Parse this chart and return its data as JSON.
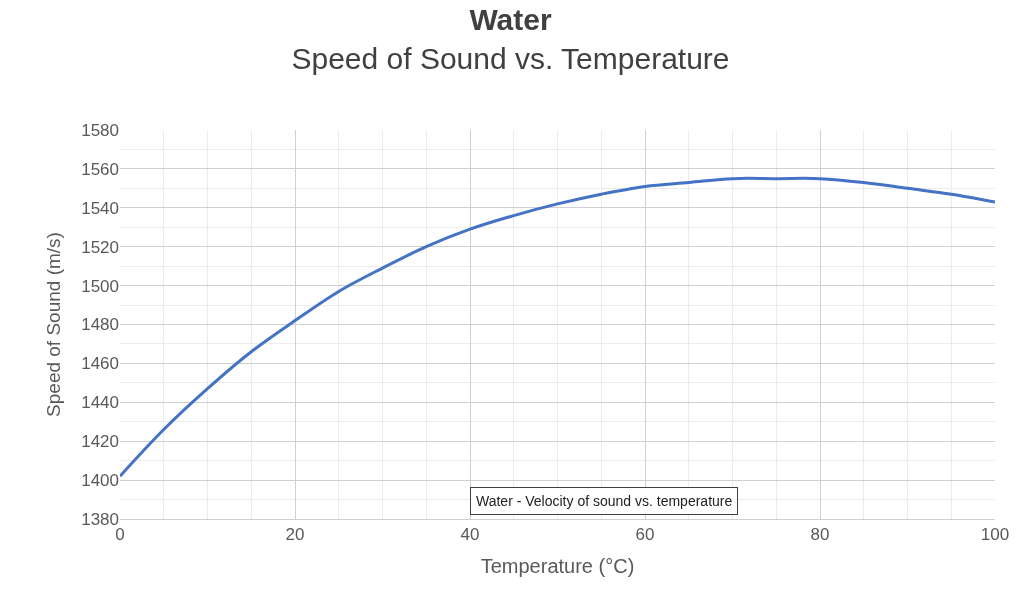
{
  "chart_data": {
    "type": "line",
    "title": "Water",
    "subtitle": "Speed of Sound vs. Temperature",
    "xlabel": "Temperature (°C)",
    "ylabel": "Speed of Sound (m/s)",
    "x": [
      0,
      5,
      10,
      15,
      20,
      25,
      30,
      35,
      40,
      45,
      50,
      55,
      60,
      65,
      70,
      75,
      80,
      85,
      90,
      95,
      100
    ],
    "series": [
      {
        "color": "#4472c4",
        "values": [
          1402,
          1426,
          1447,
          1466,
          1482,
          1497,
          1509,
          1520,
          1529,
          1536,
          1542,
          1547,
          1551,
          1553,
          1555,
          1555,
          1555,
          1553,
          1550,
          1547,
          1543
        ]
      }
    ],
    "xlim": [
      0,
      100
    ],
    "xticks": [
      0,
      20,
      40,
      60,
      80,
      100
    ],
    "ylim": [
      1380,
      1580
    ],
    "yticks": [
      1380,
      1400,
      1420,
      1440,
      1460,
      1480,
      1500,
      1520,
      1540,
      1560,
      1580
    ],
    "grid": true,
    "marker": "none",
    "line_style": "solid",
    "annotations": [
      "Water - Velocity of sound vs. temperature"
    ]
  }
}
